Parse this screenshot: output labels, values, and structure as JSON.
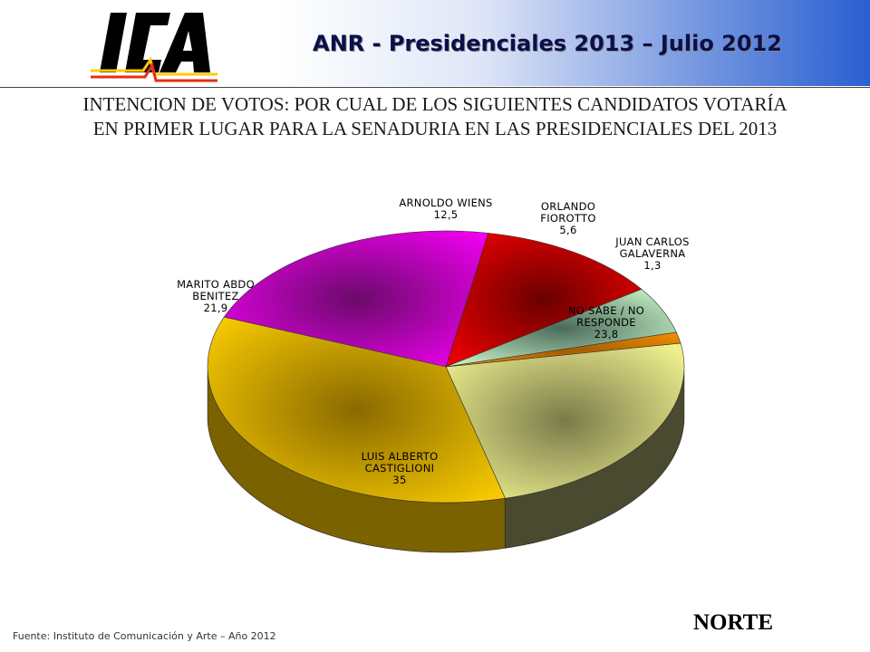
{
  "header": {
    "title": "ANR - Presidenciales 2013 – Julio 2012",
    "logo_text": "ICA"
  },
  "question": {
    "line1": "INTENCION DE VOTOS: POR CUAL DE LOS SIGUIENTES CANDIDATOS VOTARÍA",
    "line2": "EN PRIMER LUGAR PARA LA SENADURIA EN LAS PRESIDENCIALES DEL 2013"
  },
  "chart_data": {
    "type": "pie",
    "title": "",
    "slices": [
      {
        "label_lines": [
          "NO SABE / NO",
          "RESPONDE"
        ],
        "value": 23.8,
        "value_text": "23,8",
        "color": "#eef08e"
      },
      {
        "label_lines": [
          "LUIS ALBERTO",
          "CASTIGLIONI"
        ],
        "value": 35,
        "value_text": "35",
        "color": "#f5c800"
      },
      {
        "label_lines": [
          "MARITO ABDO",
          "BENITEZ"
        ],
        "value": 21.9,
        "value_text": "21,9",
        "color": "#ee00ee"
      },
      {
        "label_lines": [
          "ARNOLDO WIENS"
        ],
        "value": 12.5,
        "value_text": "12,5",
        "color": "#ee0000"
      },
      {
        "label_lines": [
          "ORLANDO",
          "FIOROTTO"
        ],
        "value": 5.6,
        "value_text": "5,6",
        "color": "#c8f4c8"
      },
      {
        "label_lines": [
          "JUAN CARLOS",
          "GALAVERNA"
        ],
        "value": 1.3,
        "value_text": "1,3",
        "color": "#f08c00"
      }
    ]
  },
  "footer": {
    "source": "Fuente: Instituto de Comunicación y Arte – Año 2012",
    "region": "NORTE"
  }
}
